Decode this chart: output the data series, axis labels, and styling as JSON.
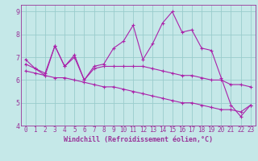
{
  "xlabel": "Windchill (Refroidissement éolien,°C)",
  "background_color": "#c5e8e8",
  "line_color": "#aa22aa",
  "grid_color": "#99cccc",
  "x": [
    0,
    1,
    2,
    3,
    4,
    5,
    6,
    7,
    8,
    9,
    10,
    11,
    12,
    13,
    14,
    15,
    16,
    17,
    18,
    19,
    20,
    21,
    22,
    23
  ],
  "line1": [
    6.9,
    6.5,
    6.2,
    7.5,
    6.6,
    7.1,
    6.0,
    6.6,
    6.7,
    7.4,
    7.7,
    8.4,
    6.9,
    7.6,
    8.5,
    9.0,
    8.1,
    8.2,
    7.4,
    7.3,
    6.1,
    4.9,
    4.4,
    4.9
  ],
  "line2": [
    6.7,
    6.5,
    6.3,
    7.5,
    6.6,
    7.0,
    6.0,
    6.5,
    6.6,
    6.6,
    6.6,
    6.6,
    6.6,
    6.5,
    6.4,
    6.3,
    6.2,
    6.2,
    6.1,
    6.0,
    6.0,
    5.8,
    5.8,
    5.7
  ],
  "line3": [
    6.4,
    6.3,
    6.2,
    6.1,
    6.1,
    6.0,
    5.9,
    5.8,
    5.7,
    5.7,
    5.6,
    5.5,
    5.4,
    5.3,
    5.2,
    5.1,
    5.0,
    5.0,
    4.9,
    4.8,
    4.7,
    4.7,
    4.6,
    4.9
  ],
  "ylim": [
    4.0,
    9.3
  ],
  "yticks": [
    4,
    5,
    6,
    7,
    8,
    9
  ],
  "xlim": [
    -0.5,
    23.5
  ],
  "font_size": 5.5,
  "tick_color": "#993399",
  "label_color": "#993399",
  "spine_color": "#993399"
}
